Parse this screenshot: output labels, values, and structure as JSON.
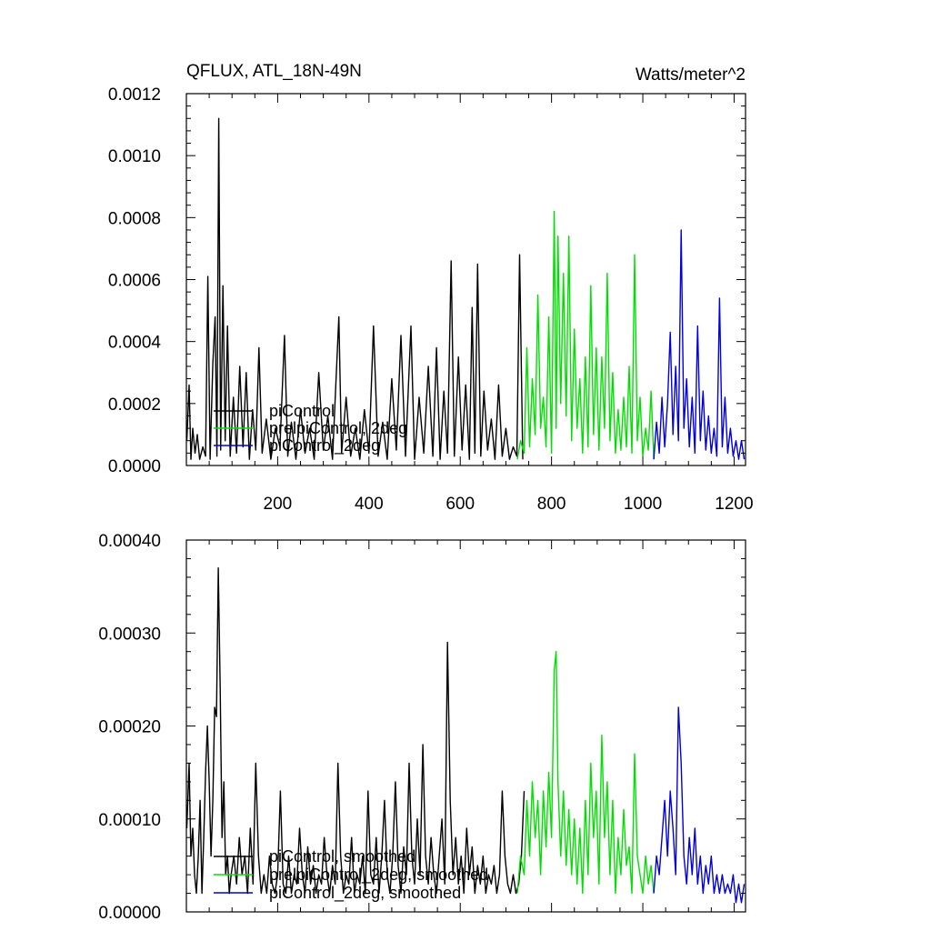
{
  "chart_data": [
    {
      "type": "line",
      "title": "QFLUX, ATL_18N-49N",
      "units": "Watts/meter^2",
      "xlabel": "",
      "ylabel": "",
      "xlim": [
        0,
        1225
      ],
      "ylim": [
        0,
        0.0012
      ],
      "xticks": [
        200,
        400,
        600,
        800,
        1000,
        1200
      ],
      "xtick_labels": [
        "200",
        "400",
        "600",
        "800",
        "1000",
        "1200"
      ],
      "yticks": [
        0,
        0.0002,
        0.0004,
        0.0006,
        0.0008,
        0.001,
        0.0012
      ],
      "ytick_labels": [
        "0.0000",
        "0.0002",
        "0.0004",
        "0.0006",
        "0.0008",
        "0.0010",
        "0.0012"
      ],
      "grid": false,
      "legend_position": "bottom-left",
      "series": [
        {
          "name": "piControl",
          "color": "#000000",
          "x": [
            1,
            6,
            10,
            14,
            19,
            24,
            29,
            36,
            42,
            47,
            52,
            58,
            63,
            67,
            71,
            75,
            80,
            85,
            90,
            96,
            103,
            110,
            117,
            124,
            131,
            138,
            145,
            152,
            159,
            166,
            175,
            185,
            195,
            205,
            215,
            222,
            230,
            240,
            250,
            260,
            270,
            280,
            290,
            300,
            310,
            320,
            334,
            340,
            350,
            360,
            370,
            380,
            390,
            400,
            410,
            420,
            430,
            440,
            450,
            460,
            470,
            480,
            492,
            500,
            510,
            520,
            530,
            540,
            548,
            556,
            564,
            572,
            580,
            587,
            596,
            604,
            612,
            620,
            626,
            632,
            638,
            645,
            652,
            660,
            668,
            676,
            684,
            692,
            700,
            708,
            716,
            724,
            730,
            737
          ],
          "y": [
            8e-05,
            0.00026,
            2e-05,
            0.00012,
            4e-05,
            0.0001,
            2e-05,
            6e-05,
            3e-05,
            0.00061,
            2e-05,
            0.00033,
            0.00048,
            3e-05,
            0.00112,
            5e-05,
            0.00058,
            8e-05,
            0.00045,
            3e-05,
            0.00022,
            4e-05,
            0.00032,
            6e-05,
            0.0003,
            2e-05,
            0.00018,
            5e-05,
            0.00038,
            4e-05,
            0.00015,
            2e-05,
            0.00012,
            6e-05,
            0.00042,
            3e-05,
            0.00014,
            2e-05,
            0.00018,
            4e-05,
            0.00012,
            2e-05,
            0.0003,
            5e-05,
            0.00016,
            2e-05,
            0.00048,
            4e-05,
            0.00022,
            3e-05,
            0.00012,
            2e-05,
            0.00018,
            4e-05,
            0.00045,
            3e-05,
            0.00014,
            2e-05,
            0.00028,
            5e-05,
            0.00042,
            3e-05,
            0.00045,
            2e-05,
            0.00022,
            4e-05,
            0.00032,
            3e-05,
            0.00038,
            2e-05,
            0.00024,
            4e-05,
            0.00066,
            3e-05,
            0.00035,
            5e-05,
            0.00026,
            2e-05,
            0.00051,
            4e-05,
            0.00065,
            3e-05,
            0.00024,
            5e-05,
            0.00015,
            2e-05,
            0.00026,
            3e-05,
            0.00012,
            2e-05,
            6e-05,
            3e-05,
            0.00068,
            2e-05
          ]
        },
        {
          "name": "prelpiControl, 2deg",
          "color": "#00e000",
          "x": [
            725,
            732,
            740,
            746,
            752,
            758,
            764,
            770,
            776,
            782,
            788,
            794,
            800,
            806,
            810,
            814,
            820,
            826,
            832,
            838,
            844,
            850,
            856,
            862,
            868,
            874,
            880,
            886,
            892,
            898,
            904,
            910,
            916,
            922,
            928,
            934,
            940,
            946,
            952,
            958,
            964,
            970,
            976,
            982,
            988,
            994,
            1000,
            1006,
            1012,
            1018,
            1024
          ],
          "y": [
            2e-05,
            8e-05,
            4e-05,
            0.00038,
            6e-05,
            0.00028,
            0.0001,
            0.00055,
            0.00012,
            0.00022,
            6e-05,
            0.00048,
            4e-05,
            0.00082,
            0.00012,
            0.00074,
            0.0002,
            0.00062,
            0.00016,
            0.00074,
            8e-05,
            0.00044,
            0.00012,
            0.00028,
            4e-05,
            0.00035,
            6e-05,
            0.00058,
            0.0001,
            0.00038,
            5e-05,
            0.00035,
            0.00012,
            0.00062,
            8e-05,
            0.0003,
            4e-05,
            0.00018,
            5e-05,
            0.00022,
            6e-05,
            0.00032,
            4e-05,
            0.00068,
            8e-05,
            0.00022,
            3e-05,
            0.00012,
            5e-05,
            0.00024,
            2e-05
          ]
        },
        {
          "name": "piControl_2deg",
          "color": "#0000e0",
          "x": [
            1024,
            1030,
            1036,
            1042,
            1048,
            1054,
            1060,
            1066,
            1072,
            1078,
            1084,
            1090,
            1096,
            1102,
            1108,
            1114,
            1120,
            1126,
            1132,
            1138,
            1144,
            1150,
            1156,
            1162,
            1168,
            1174,
            1180,
            1186,
            1192,
            1198,
            1204,
            1210,
            1216,
            1222
          ],
          "y": [
            2e-05,
            0.00014,
            4e-05,
            0.00022,
            6e-05,
            0.0002,
            0.00043,
            0.0001,
            0.00032,
            8e-05,
            0.00076,
            0.00012,
            0.00028,
            6e-05,
            0.00022,
            4e-05,
            0.00045,
            8e-05,
            0.00024,
            5e-05,
            0.00016,
            4e-05,
            0.00012,
            3e-05,
            0.00054,
            6e-05,
            0.00022,
            4e-05,
            0.00012,
            3e-05,
            8e-05,
            2e-05,
            8e-05,
            2e-05
          ]
        }
      ]
    },
    {
      "type": "line",
      "title": "",
      "xlabel": "",
      "ylabel": "",
      "xlim": [
        0,
        1225
      ],
      "ylim": [
        0,
        0.0004
      ],
      "xticks": [
        200,
        400,
        600,
        800,
        1000,
        1200
      ],
      "xtick_labels": [],
      "yticks": [
        0,
        0.0001,
        0.0002,
        0.0003,
        0.0004
      ],
      "ytick_labels": [
        "0.00000",
        "0.00010",
        "0.00020",
        "0.00030",
        "0.00040"
      ],
      "grid": false,
      "legend_position": "bottom-left",
      "series": [
        {
          "name": "piControl, smoothed",
          "color": "#000000",
          "x": [
            1,
            6,
            10,
            14,
            18,
            22,
            26,
            30,
            34,
            38,
            42,
            46,
            50,
            54,
            58,
            62,
            66,
            70,
            74,
            78,
            82,
            86,
            90,
            94,
            98,
            104,
            110,
            116,
            122,
            128,
            134,
            140,
            146,
            152,
            158,
            164,
            170,
            176,
            182,
            188,
            194,
            200,
            206,
            212,
            218,
            224,
            230,
            236,
            242,
            248,
            254,
            260,
            266,
            272,
            278,
            284,
            290,
            296,
            302,
            308,
            314,
            320,
            326,
            332,
            338,
            344,
            350,
            356,
            362,
            368,
            374,
            380,
            386,
            392,
            398,
            404,
            410,
            416,
            422,
            428,
            434,
            440,
            446,
            452,
            458,
            464,
            470,
            476,
            482,
            488,
            494,
            500,
            506,
            512,
            518,
            524,
            530,
            536,
            542,
            548,
            554,
            560,
            566,
            572,
            578,
            584,
            590,
            596,
            602,
            608,
            614,
            620,
            626,
            632,
            638,
            644,
            650,
            656,
            662,
            668,
            674,
            680,
            686,
            692,
            698,
            704,
            710,
            716,
            722,
            728,
            734,
            740
          ],
          "y": [
            9e-05,
            0.00016,
            6e-05,
            9e-05,
            4e-05,
            2e-05,
            6e-05,
            0.00012,
            2e-05,
            8e-05,
            0.00015,
            0.0002,
            0.00014,
            6e-05,
            0.00012,
            0.00022,
            0.00021,
            0.00037,
            0.00024,
            8e-05,
            0.00014,
            4e-05,
            6e-05,
            2e-05,
            4e-05,
            6e-05,
            3e-05,
            8e-05,
            4e-05,
            6e-05,
            2e-05,
            9e-05,
            3e-05,
            0.00016,
            6e-05,
            2e-05,
            4e-05,
            2e-05,
            6e-05,
            3e-05,
            2e-05,
            4e-05,
            0.00013,
            3e-05,
            2e-05,
            6e-05,
            2e-05,
            4e-05,
            3e-05,
            9e-05,
            4e-05,
            2e-05,
            7e-05,
            3e-05,
            5e-05,
            2e-05,
            4e-05,
            3e-05,
            8e-05,
            4e-05,
            2e-05,
            5e-05,
            3e-05,
            0.00016,
            6e-05,
            2e-05,
            4e-05,
            3e-05,
            8e-05,
            2e-05,
            4e-05,
            3e-05,
            6e-05,
            2e-05,
            0.00013,
            4e-05,
            3e-05,
            8e-05,
            2e-05,
            6e-05,
            0.00012,
            4e-05,
            2e-05,
            6e-05,
            0.00014,
            5e-05,
            2e-05,
            7e-05,
            4e-05,
            0.00016,
            6e-05,
            3e-05,
            0.0001,
            4e-05,
            0.00018,
            6e-05,
            3e-05,
            8e-05,
            4e-05,
            2e-05,
            6e-05,
            0.0001,
            3e-05,
            0.00029,
            0.00012,
            4e-05,
            8e-05,
            3e-05,
            6e-05,
            2e-05,
            9e-05,
            4e-05,
            7e-05,
            2e-05,
            5e-05,
            3e-05,
            6e-05,
            2e-05,
            4e-05,
            3e-05,
            5e-05,
            2e-05,
            4e-05,
            0.00013,
            6e-05,
            3e-05,
            2e-05,
            4e-05,
            2e-05,
            3e-05,
            6e-05,
            0.00013
          ]
        },
        {
          "name": "prelpiControl_2deg, smoothed",
          "color": "#00e000",
          "x": [
            725,
            732,
            740,
            746,
            752,
            758,
            764,
            770,
            776,
            782,
            788,
            794,
            800,
            806,
            810,
            814,
            820,
            826,
            832,
            838,
            844,
            850,
            856,
            862,
            868,
            874,
            880,
            886,
            892,
            898,
            904,
            910,
            916,
            922,
            928,
            934,
            940,
            946,
            952,
            958,
            964,
            970,
            976,
            982,
            988,
            994,
            1000,
            1006,
            1012,
            1018,
            1024
          ],
          "y": [
            2e-05,
            6e-05,
            4e-05,
            0.00012,
            6e-05,
            0.00014,
            8e-05,
            0.00012,
            4e-05,
            0.00013,
            7e-05,
            0.00015,
            8e-05,
            0.00026,
            0.00028,
            0.00014,
            6e-05,
            0.00013,
            5e-05,
            0.00011,
            4e-05,
            0.0001,
            3e-05,
            9e-05,
            2e-05,
            0.00012,
            4e-05,
            0.00016,
            8e-05,
            0.00013,
            3e-05,
            0.00019,
            8e-05,
            0.00014,
            4e-05,
            0.00012,
            2e-05,
            8e-05,
            4e-05,
            0.00011,
            5e-05,
            7e-05,
            2e-05,
            0.00017,
            6e-05,
            4e-05,
            2e-05,
            6e-05,
            3e-05,
            5e-05,
            2e-05
          ]
        },
        {
          "name": "piControl_2deg, smoothed",
          "color": "#0000e0",
          "x": [
            1024,
            1030,
            1036,
            1042,
            1048,
            1054,
            1060,
            1066,
            1072,
            1078,
            1084,
            1090,
            1096,
            1102,
            1108,
            1114,
            1120,
            1126,
            1132,
            1138,
            1144,
            1150,
            1156,
            1162,
            1168,
            1174,
            1180,
            1186,
            1192,
            1198,
            1204,
            1210,
            1216,
            1222
          ],
          "y": [
            2e-05,
            6e-05,
            4e-05,
            8e-05,
            0.00012,
            6e-05,
            0.00013,
            9e-05,
            4e-05,
            0.00022,
            0.00016,
            6e-05,
            3e-05,
            8e-05,
            4e-05,
            9e-05,
            3e-05,
            6e-05,
            2e-05,
            5e-05,
            3e-05,
            6e-05,
            2e-05,
            4e-05,
            2e-05,
            4e-05,
            2e-05,
            3e-05,
            2e-05,
            4e-05,
            1e-05,
            3e-05,
            1e-05,
            3e-05
          ]
        }
      ]
    }
  ]
}
